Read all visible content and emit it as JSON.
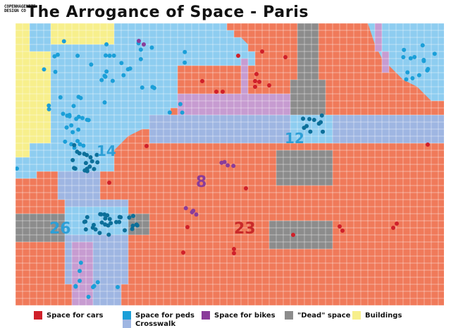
{
  "header": {
    "title": "The Arrogance of Space - Paris",
    "logo_text": "COPENHAGENIZE DESIGN CO"
  },
  "map": {
    "labels": {
      "crossing_center": "14",
      "crossing_right": "12",
      "bikes_center": "8",
      "crossing_left": "26",
      "cars_center": "23"
    }
  },
  "legend": {
    "cars": "Space for cars",
    "peds": "Space for peds",
    "bikes": "Space for bikes",
    "dead": "\"Dead\" space",
    "buildings": "Buildings",
    "crosswalk": "Crosswalk"
  },
  "colors": {
    "cars": "#f07a5a",
    "peds": "#8ecdf0",
    "bikes": "#c79cd1",
    "dead": "#8c8c8c",
    "buildings": "#f7ef8c",
    "crosswalk": "#9fb6e2",
    "grid": "#ffffff",
    "red_dot": "#d0202a",
    "blue_dot": "#1b9fd8",
    "dark_blue_dot": "#0c6f99",
    "purple_dot": "#8a3c9a",
    "label_blue": "#2d9fd6",
    "label_purple": "#8a3c9a",
    "label_red": "#c92a2a"
  }
}
